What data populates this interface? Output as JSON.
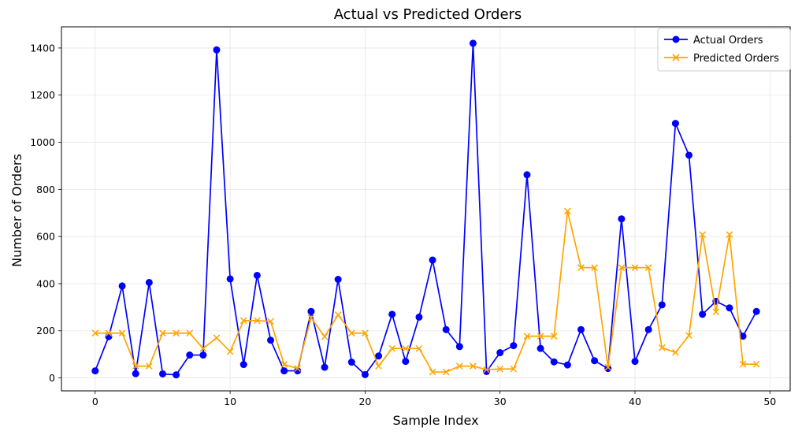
{
  "chart_data": {
    "type": "line",
    "title": "Actual vs Predicted Orders",
    "xlabel": "Sample Index",
    "ylabel": "Number of Orders",
    "xlim": [
      -2.5,
      51.5
    ],
    "ylim": [
      -55,
      1490
    ],
    "xticks": [
      0,
      10,
      20,
      30,
      40,
      50
    ],
    "yticks": [
      0,
      200,
      400,
      600,
      800,
      1000,
      1200,
      1400
    ],
    "grid": true,
    "legend": "top-right",
    "x": [
      0,
      1,
      2,
      3,
      4,
      5,
      6,
      7,
      8,
      9,
      10,
      11,
      12,
      13,
      14,
      15,
      16,
      17,
      18,
      19,
      20,
      21,
      22,
      23,
      24,
      25,
      26,
      27,
      28,
      29,
      30,
      31,
      32,
      33,
      34,
      35,
      36,
      37,
      38,
      39,
      40,
      41,
      42,
      43,
      44,
      45,
      46,
      47,
      48,
      49
    ],
    "series": [
      {
        "name": "Actual Orders",
        "color": "#0000ff",
        "marker": "circle",
        "values": [
          30,
          175,
          390,
          18,
          405,
          17,
          13,
          97,
          97,
          1392,
          420,
          57,
          435,
          160,
          30,
          30,
          282,
          45,
          418,
          67,
          14,
          93,
          270,
          70,
          258,
          500,
          205,
          133,
          1420,
          27,
          107,
          137,
          862,
          125,
          68,
          55,
          205,
          73,
          40,
          675,
          70,
          205,
          310,
          1080,
          945,
          270,
          325,
          297,
          177,
          282
        ]
      },
      {
        "name": "Predicted Orders",
        "color": "#ffa500",
        "marker": "x",
        "values": [
          190,
          190,
          190,
          50,
          50,
          190,
          190,
          190,
          125,
          170,
          112,
          243,
          243,
          240,
          57,
          40,
          255,
          175,
          268,
          190,
          190,
          50,
          125,
          125,
          125,
          25,
          25,
          50,
          50,
          35,
          38,
          38,
          177,
          177,
          177,
          708,
          468,
          468,
          45,
          468,
          468,
          468,
          128,
          108,
          180,
          608,
          280,
          608,
          58,
          58
        ]
      }
    ]
  }
}
